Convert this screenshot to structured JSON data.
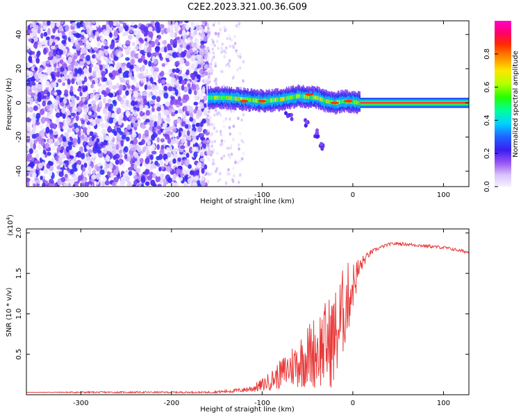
{
  "title": "C2E2.2023.321.00.36.G09",
  "colorbar": {
    "label": "Normalized spectral amplitude",
    "ticks": [
      "0.0",
      "0.2",
      "0.4",
      "0.6",
      "0.8"
    ],
    "tick_values": [
      0.0,
      0.2,
      0.4,
      0.6,
      0.8
    ],
    "range": [
      0,
      1
    ],
    "colormap": "rainbow"
  },
  "chart_data": [
    {
      "type": "heatmap",
      "title": "",
      "xlabel": "Height of straight line (km)",
      "ylabel": "Frequency (Hz)",
      "xlim": [
        -360,
        128
      ],
      "ylim": [
        -49,
        48
      ],
      "xticks": [
        -300,
        -200,
        -100,
        0,
        100
      ],
      "xtick_labels": [
        "-300",
        "-200",
        "-100",
        "0",
        "100"
      ],
      "yticks": [
        -40,
        -20,
        0,
        20,
        40
      ],
      "ytick_labels": [
        "-40",
        "-20",
        "0",
        "20",
        "40"
      ],
      "features": [
        {
          "label": "noise",
          "x_range": [
            -360,
            -160
          ],
          "amplitude": 0.2
        },
        {
          "label": "fading",
          "x_range": [
            -160,
            -120
          ],
          "amplitude": 0.1
        },
        {
          "label": "signal",
          "x_range": [
            -160,
            8
          ],
          "freq_hz": [
            3,
            3,
            2,
            1,
            2,
            4,
            3,
            1,
            0,
            1,
            0
          ],
          "x_points": [
            -160,
            -140,
            -120,
            -100,
            -80,
            -60,
            -40,
            -30,
            -20,
            -10,
            8
          ],
          "amplitude": 0.45
        },
        {
          "label": "tail",
          "points": [
            [
              -70,
              -8
            ],
            [
              -50,
              -12
            ],
            [
              -38,
              -18
            ],
            [
              -35,
              -25
            ]
          ],
          "amplitude": 0.15
        },
        {
          "label": "line",
          "x_range": [
            8,
            128
          ],
          "freq_hz": 0,
          "amplitude": 0.9
        }
      ]
    },
    {
      "type": "line",
      "title": "",
      "xlabel": "Height of straight line (km)",
      "ylabel": "SNR (10 * v/v)",
      "y_multiplier_label": "(x10",
      "y_multiplier_exp": "4",
      "y_multiplier_close": ")",
      "xlim": [
        -360,
        128
      ],
      "ylim": [
        0,
        2.05
      ],
      "xticks": [
        -300,
        -200,
        -100,
        0,
        100
      ],
      "xtick_labels": [
        "-300",
        "-200",
        "-100",
        "0",
        "100"
      ],
      "yticks": [
        0.5,
        1.0,
        1.5,
        2.0
      ],
      "ytick_labels": [
        "0.5",
        "1.0",
        "1.5",
        "2.0"
      ],
      "series": [
        {
          "color": "#e83a3a",
          "x": [
            -360,
            -300,
            -250,
            -200,
            -160,
            -140,
            -120,
            -110,
            -100,
            -90,
            -80,
            -70,
            -60,
            -50,
            -40,
            -30,
            -20,
            -15,
            -10,
            -5,
            0,
            5,
            10,
            15,
            20,
            30,
            40,
            50,
            60,
            70,
            80,
            90,
            100,
            110,
            128
          ],
          "y": [
            0.03,
            0.03,
            0.03,
            0.03,
            0.03,
            0.04,
            0.06,
            0.08,
            0.12,
            0.18,
            0.25,
            0.33,
            0.4,
            0.48,
            0.55,
            0.62,
            0.7,
            0.85,
            1.05,
            1.2,
            1.35,
            1.5,
            1.62,
            1.7,
            1.76,
            1.82,
            1.86,
            1.87,
            1.86,
            1.85,
            1.84,
            1.83,
            1.82,
            1.8,
            1.76
          ],
          "noise_envelope": [
            0.0,
            0.01,
            0.01,
            0.01,
            0.01,
            0.02,
            0.03,
            0.05,
            0.08,
            0.12,
            0.18,
            0.25,
            0.32,
            0.4,
            0.48,
            0.55,
            0.62,
            0.6,
            0.55,
            0.45,
            0.3,
            0.2,
            0.1,
            0.05,
            0.03,
            0.02,
            0.02,
            0.02,
            0.02,
            0.02,
            0.02,
            0.02,
            0.02,
            0.02,
            0.02
          ]
        }
      ]
    }
  ]
}
